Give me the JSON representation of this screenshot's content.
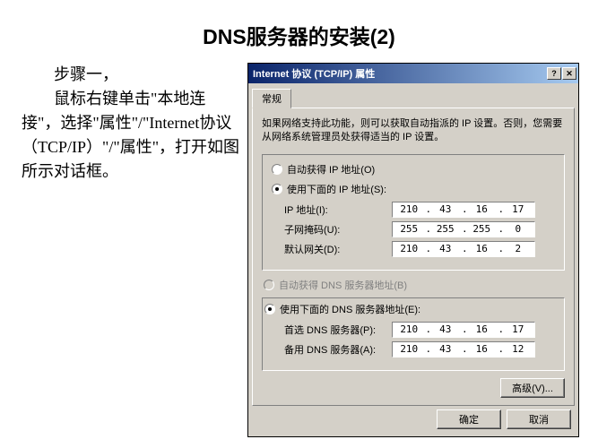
{
  "slide": {
    "title": "DNS服务器的安装(2)",
    "instructions_html": "　　步骤一，<br>　　鼠标右键单击\"本地连接\"，选择\"属性\"/\"Internet协议（TCP/IP）\"/\"属性\"，打开如图所示对话框。"
  },
  "dialog": {
    "title": "Internet 协议 (TCP/IP) 属性",
    "tab": "常规",
    "info": "如果网络支持此功能，则可以获取自动指派的 IP 设置。否则，您需要从网络系统管理员处获得适当的 IP 设置。",
    "ip_group": {
      "auto_label": "自动获得 IP 地址(O)",
      "manual_label": "使用下面的 IP 地址(S):",
      "selected": "manual",
      "ip_label": "IP 地址(I):",
      "ip": [
        "210",
        "43",
        "16",
        "17"
      ],
      "mask_label": "子网掩码(U):",
      "mask": [
        "255",
        "255",
        "255",
        "0"
      ],
      "gateway_label": "默认网关(D):",
      "gateway": [
        "210",
        "43",
        "16",
        "2"
      ]
    },
    "dns_group": {
      "auto_label": "自动获得 DNS 服务器地址(B)",
      "manual_label": "使用下面的 DNS 服务器地址(E):",
      "selected": "manual",
      "primary_label": "首选 DNS 服务器(P):",
      "primary": [
        "210",
        "43",
        "16",
        "17"
      ],
      "alt_label": "备用 DNS 服务器(A):",
      "alt": [
        "210",
        "43",
        "16",
        "12"
      ]
    },
    "advanced_btn": "高级(V)...",
    "ok_btn": "确定",
    "cancel_btn": "取消"
  }
}
